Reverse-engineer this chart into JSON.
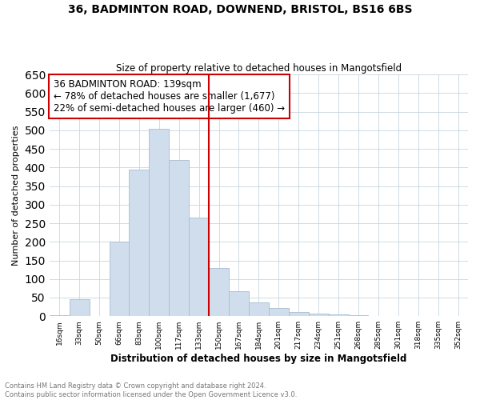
{
  "title1": "36, BADMINTON ROAD, DOWNEND, BRISTOL, BS16 6BS",
  "title2": "Size of property relative to detached houses in Mangotsfield",
  "xlabel": "Distribution of detached houses by size in Mangotsfield",
  "ylabel": "Number of detached properties",
  "footnote1": "Contains HM Land Registry data © Crown copyright and database right 2024.",
  "footnote2": "Contains public sector information licensed under the Open Government Licence v3.0.",
  "annotation_line1": "36 BADMINTON ROAD: 139sqm",
  "annotation_line2": "← 78% of detached houses are smaller (1,677)",
  "annotation_line3": "22% of semi-detached houses are larger (460) →",
  "bar_labels": [
    "16sqm",
    "33sqm",
    "50sqm",
    "66sqm",
    "83sqm",
    "100sqm",
    "117sqm",
    "133sqm",
    "150sqm",
    "167sqm",
    "184sqm",
    "201sqm",
    "217sqm",
    "234sqm",
    "251sqm",
    "268sqm",
    "285sqm",
    "301sqm",
    "318sqm",
    "335sqm",
    "352sqm"
  ],
  "bar_values": [
    2,
    45,
    0,
    200,
    395,
    505,
    420,
    265,
    130,
    68,
    38,
    22,
    12,
    7,
    4,
    2,
    1,
    1,
    0,
    0,
    0
  ],
  "bar_color": "#cfdded",
  "bar_edge_color": "#a8bece",
  "vline_color": "#cc0000",
  "vline_x": 7.5,
  "annotation_box_color": "#cc0000",
  "ylim": [
    0,
    650
  ],
  "ytick_step": 50,
  "bg_color": "#ffffff",
  "grid_color": "#c8d4de"
}
